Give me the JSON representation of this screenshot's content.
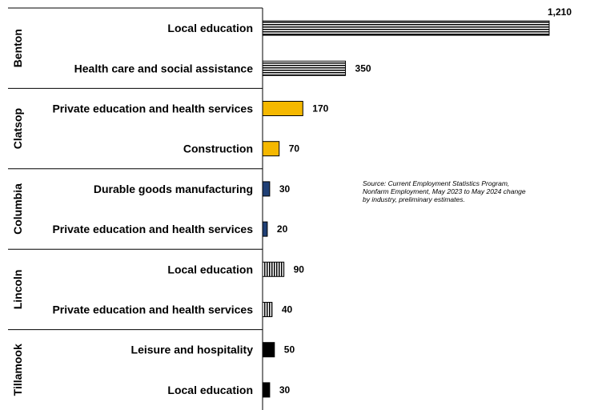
{
  "chart_data": {
    "type": "bar",
    "orientation": "horizontal",
    "groups": [
      {
        "name": "Benton",
        "color": "#000000",
        "pattern": "horizontal-stripes",
        "bars": [
          {
            "label": "Local education",
            "value": 1210,
            "value_label": "1,210"
          },
          {
            "label": "Health care and social assistance",
            "value": 350,
            "value_label": "350"
          }
        ]
      },
      {
        "name": "Clatsop",
        "color": "#F5B800",
        "pattern": "solid",
        "bars": [
          {
            "label": "Private education and health services",
            "value": 170,
            "value_label": "170"
          },
          {
            "label": "Construction",
            "value": 70,
            "value_label": "70"
          }
        ]
      },
      {
        "name": "Columbia",
        "color": "#1F3F75",
        "pattern": "solid",
        "bars": [
          {
            "label": "Durable goods manufacturing",
            "value": 30,
            "value_label": "30"
          },
          {
            "label": "Private education and health services",
            "value": 20,
            "value_label": "20"
          }
        ]
      },
      {
        "name": "Lincoln",
        "color": "#000000",
        "pattern": "vertical-stripes",
        "bars": [
          {
            "label": "Local education",
            "value": 90,
            "value_label": "90"
          },
          {
            "label": "Private education and health services",
            "value": 40,
            "value_label": "40"
          }
        ]
      },
      {
        "name": "Tillamook",
        "color": "#000000",
        "pattern": "solid",
        "bars": [
          {
            "label": "Leisure and hospitality",
            "value": 50,
            "value_label": "50"
          },
          {
            "label": "Local education",
            "value": 30,
            "value_label": "30"
          }
        ]
      }
    ],
    "xlim": [
      0,
      1210
    ],
    "grid": false,
    "legend": "none",
    "annotation": "Source: Current Employment Statistics Program, Nonfarm Employment, May 2023 to May 2024 change by industry, preliminary estimates."
  }
}
